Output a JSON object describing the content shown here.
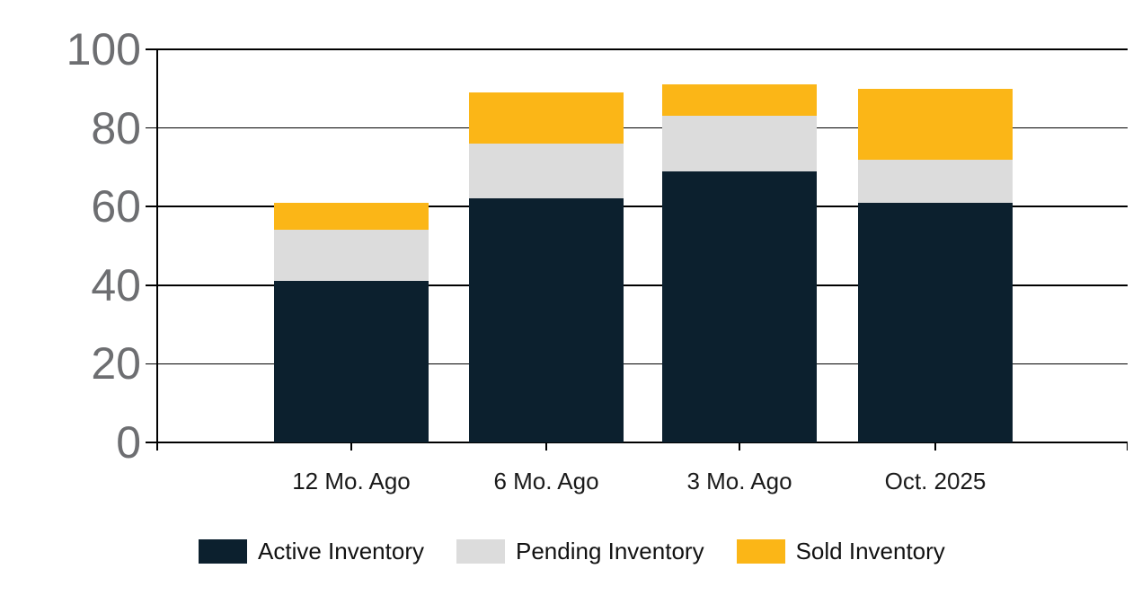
{
  "chart_data": {
    "type": "bar",
    "stacked": true,
    "title": "",
    "xlabel": "",
    "ylabel": "",
    "categories": [
      "12 Mo. Ago",
      "6 Mo. Ago",
      "3 Mo. Ago",
      "Oct. 2025"
    ],
    "series": [
      {
        "name": "Active Inventory",
        "color": "#0c202e",
        "values": [
          41,
          62,
          69,
          61
        ]
      },
      {
        "name": "Pending Inventory",
        "color": "#dcdcdc",
        "values": [
          13,
          14,
          14,
          11
        ]
      },
      {
        "name": "Sold Inventory",
        "color": "#fbb617",
        "values": [
          7,
          13,
          8,
          18
        ]
      }
    ],
    "totals": [
      61,
      89,
      91,
      90
    ],
    "ylim": [
      0,
      100
    ],
    "yticks": [
      0,
      20,
      40,
      60,
      80,
      100
    ],
    "grid": true,
    "legend_position": "bottom"
  },
  "colors": {
    "axis_line": "#000000",
    "y_tick_label": "#6d6e71",
    "x_tick_label": "#1a1a1a",
    "background": "#ffffff"
  }
}
